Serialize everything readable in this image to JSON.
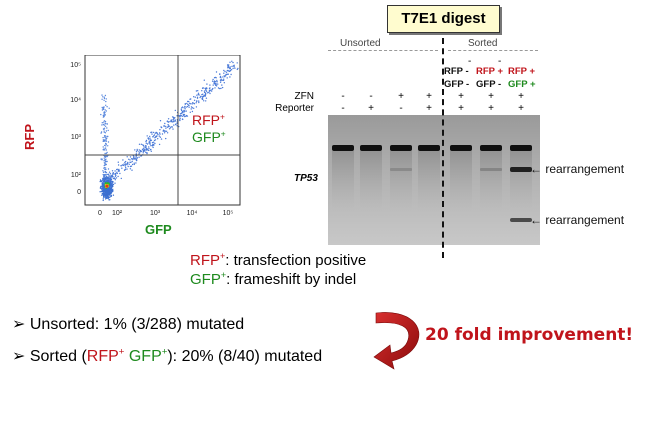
{
  "flow_plot": {
    "x_axis": "GFP",
    "y_axis": "RFP",
    "x_ticks": [
      "0",
      "10²",
      "10³",
      "10⁴",
      "10⁵"
    ],
    "y_ticks": [
      "0",
      "10²",
      "10³",
      "10⁴",
      "10⁵"
    ],
    "quadrant_label_1": "RFP",
    "quadrant_label_2": "GFP",
    "plus": "+"
  },
  "gel": {
    "title": "T7E1 digest",
    "group_unsorted": "Unsorted",
    "group_sorted": "Sorted",
    "row_zfn": "ZFN",
    "row_reporter": "Reporter",
    "unsorted_zfn": [
      "-",
      "-",
      "+",
      "+"
    ],
    "unsorted_reporter": [
      "-",
      "+",
      "-",
      "+"
    ],
    "sorted_lanes": [
      {
        "rfp": "RFP -",
        "gfp": "GFP -",
        "zfn": "+",
        "reporter": "+"
      },
      {
        "rfp": "RFP +",
        "gfp": "GFP -",
        "zfn": "+",
        "reporter": "+"
      },
      {
        "rfp": "RFP +",
        "gfp": "GFP +",
        "zfn": "+",
        "reporter": "+"
      }
    ],
    "dash": "-",
    "gene": "TP53",
    "arrow_label_1": "← rearrangement",
    "arrow_label_2": "← rearrangement"
  },
  "legend": {
    "rfp": "RFP",
    "rfp_desc": ": transfection positive",
    "gfp": "GFP",
    "gfp_desc": ": frameshift by indel"
  },
  "results": {
    "bullet": "➢",
    "unsorted": "Unsorted: 1% (3/288) mutated",
    "sorted_prefix": "Sorted (",
    "sorted_rfp": "RFP",
    "sorted_gfp": "GFP",
    "sorted_suffix": "): 20% (8/40) mutated",
    "improvement": "20 fold improvement!"
  },
  "colors": {
    "red": "#c0141b",
    "green": "#1e8a1e",
    "title_box": "#fffccf"
  }
}
